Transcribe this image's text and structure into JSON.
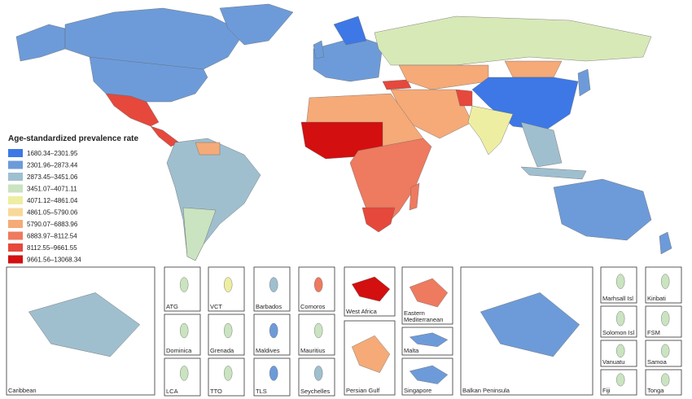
{
  "legend": {
    "title": "Age-standardized prevalence rate",
    "items": [
      {
        "label": "1680.34–2301.95",
        "color": "#3d78e6"
      },
      {
        "label": "2301.96–2873.44",
        "color": "#6d9bd9"
      },
      {
        "label": "2873.45–3451.06",
        "color": "#9fbfcf"
      },
      {
        "label": "3451.07–4071.11",
        "color": "#cae3c0"
      },
      {
        "label": "4071.12–4861.04",
        "color": "#eeeea3"
      },
      {
        "label": "4861.05–5790.06",
        "color": "#f8d99a"
      },
      {
        "label": "5790.07–6883.96",
        "color": "#f5aa78"
      },
      {
        "label": "6883.97–8112.54",
        "color": "#ee7a5f"
      },
      {
        "label": "8112.55–9661.55",
        "color": "#e6483c"
      },
      {
        "label": "9661.56–13068.34",
        "color": "#d30f10"
      }
    ]
  },
  "insets": [
    "Caribbean",
    "ATG",
    "VCT",
    "Barbados",
    "Comoros",
    "Dominica",
    "Grenada",
    "Maldives",
    "Mauritius",
    "LCA",
    "TTO",
    "TLS",
    "Seychelles",
    "West Africa",
    "Persian Gulf",
    "Eastern Mediterranean",
    "Malta",
    "Singapore",
    "Balkan Peninsula",
    "Marhsall Isl",
    "Kiribati",
    "Solomon Isl",
    "FSM",
    "Vanuatu",
    "Samoa",
    "Fiji",
    "Tonga"
  ]
}
